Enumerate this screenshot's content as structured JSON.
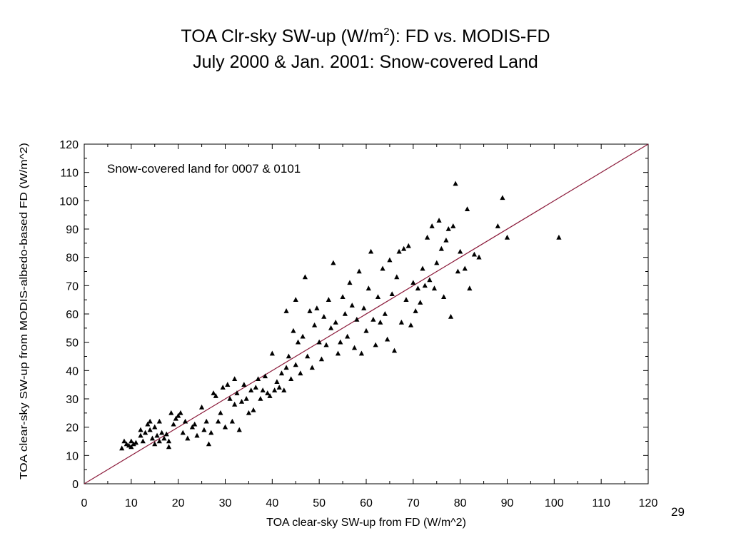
{
  "slide": {
    "title_part1": "TOA Clr-sky SW-up (W/m",
    "title_sup": "2",
    "title_part2": "): FD vs. MODIS-FD",
    "subtitle": "July 2000 & Jan. 2001: Snow-covered Land",
    "page_number": "29"
  },
  "chart_data": {
    "type": "scatter",
    "annotation": "Snow-covered land for 0007 & 0101",
    "xlabel": "TOA clear-sky SW-up from FD (W/m^2)",
    "ylabel": "TOA clear-sky SW-up from MODIS-albedo-based FD (W/m^2)",
    "xlim": [
      0,
      120
    ],
    "ylim": [
      0,
      120
    ],
    "xticks": [
      0,
      10,
      20,
      30,
      40,
      50,
      60,
      70,
      80,
      90,
      100,
      110,
      120
    ],
    "yticks": [
      0,
      10,
      20,
      30,
      40,
      50,
      60,
      70,
      80,
      90,
      100,
      110,
      120
    ],
    "grid": false,
    "marker": "triangle",
    "reference_line": {
      "type": "1:1",
      "from": [
        0,
        0
      ],
      "to": [
        120,
        120
      ],
      "color": "#8b1a3a"
    },
    "points": [
      [
        8,
        12.5
      ],
      [
        8.5,
        15
      ],
      [
        9,
        14
      ],
      [
        9.5,
        13.5
      ],
      [
        10,
        15
      ],
      [
        10,
        13
      ],
      [
        10.5,
        14
      ],
      [
        11,
        14.5
      ],
      [
        12,
        19
      ],
      [
        12,
        17
      ],
      [
        12.5,
        15
      ],
      [
        13,
        18
      ],
      [
        13.5,
        21
      ],
      [
        14,
        22
      ],
      [
        14,
        19
      ],
      [
        14.5,
        16
      ],
      [
        15,
        14
      ],
      [
        15,
        20
      ],
      [
        15.5,
        17
      ],
      [
        16,
        22
      ],
      [
        16,
        15
      ],
      [
        16.5,
        18
      ],
      [
        17,
        16
      ],
      [
        17.5,
        17.5
      ],
      [
        18,
        13
      ],
      [
        18,
        15
      ],
      [
        18.5,
        25
      ],
      [
        19,
        21
      ],
      [
        19.5,
        23
      ],
      [
        20,
        24
      ],
      [
        20.5,
        25
      ],
      [
        21,
        18
      ],
      [
        21.5,
        22
      ],
      [
        22,
        16
      ],
      [
        23,
        20
      ],
      [
        23.5,
        21
      ],
      [
        24,
        17
      ],
      [
        25,
        27
      ],
      [
        25.5,
        19
      ],
      [
        26,
        22
      ],
      [
        26.5,
        14
      ],
      [
        27,
        18
      ],
      [
        27.5,
        32
      ],
      [
        28,
        31
      ],
      [
        28.5,
        22
      ],
      [
        29,
        25
      ],
      [
        29.5,
        34
      ],
      [
        30,
        20
      ],
      [
        30.5,
        35
      ],
      [
        31,
        30
      ],
      [
        31.5,
        22
      ],
      [
        32,
        28
      ],
      [
        32,
        37
      ],
      [
        32.5,
        32
      ],
      [
        33,
        19
      ],
      [
        33.5,
        29
      ],
      [
        34,
        35
      ],
      [
        34.5,
        30
      ],
      [
        35,
        25
      ],
      [
        35.5,
        33
      ],
      [
        36,
        26
      ],
      [
        36.5,
        34
      ],
      [
        37,
        37
      ],
      [
        37.5,
        30
      ],
      [
        38,
        33
      ],
      [
        38.5,
        38
      ],
      [
        39,
        32
      ],
      [
        39.5,
        31
      ],
      [
        40,
        46
      ],
      [
        40.5,
        33
      ],
      [
        41,
        36
      ],
      [
        41.5,
        34
      ],
      [
        42,
        39
      ],
      [
        42.5,
        33
      ],
      [
        43,
        41
      ],
      [
        43,
        61
      ],
      [
        43.5,
        45
      ],
      [
        44,
        37
      ],
      [
        44.5,
        54
      ],
      [
        45,
        42
      ],
      [
        45,
        65
      ],
      [
        45.5,
        50
      ],
      [
        46,
        39
      ],
      [
        46.5,
        52
      ],
      [
        47,
        73
      ],
      [
        47.5,
        45
      ],
      [
        48,
        61
      ],
      [
        48.5,
        41
      ],
      [
        49,
        56
      ],
      [
        49.5,
        62
      ],
      [
        50,
        50
      ],
      [
        50.5,
        44
      ],
      [
        51,
        59
      ],
      [
        51.5,
        49
      ],
      [
        52,
        65
      ],
      [
        52.5,
        55
      ],
      [
        53,
        78
      ],
      [
        53.5,
        57
      ],
      [
        54,
        46
      ],
      [
        54.5,
        50
      ],
      [
        55,
        66
      ],
      [
        55.5,
        60
      ],
      [
        56,
        52
      ],
      [
        56.5,
        71
      ],
      [
        57,
        63
      ],
      [
        57.5,
        48
      ],
      [
        58,
        58
      ],
      [
        58.5,
        75
      ],
      [
        59,
        46
      ],
      [
        59.5,
        62
      ],
      [
        60,
        54
      ],
      [
        60.5,
        69
      ],
      [
        61,
        82
      ],
      [
        61.5,
        58
      ],
      [
        62,
        49
      ],
      [
        62.5,
        66
      ],
      [
        63,
        57
      ],
      [
        63.5,
        76
      ],
      [
        64,
        60
      ],
      [
        64.5,
        51
      ],
      [
        65,
        79
      ],
      [
        65.5,
        67
      ],
      [
        66,
        47
      ],
      [
        66.5,
        73
      ],
      [
        67,
        82
      ],
      [
        67.5,
        57
      ],
      [
        68,
        83
      ],
      [
        68.5,
        65
      ],
      [
        69,
        84
      ],
      [
        69.5,
        56
      ],
      [
        70,
        71
      ],
      [
        70.5,
        61
      ],
      [
        71,
        69
      ],
      [
        71.5,
        64
      ],
      [
        72,
        76
      ],
      [
        72.5,
        70
      ],
      [
        73,
        87
      ],
      [
        73.5,
        72
      ],
      [
        74,
        91
      ],
      [
        74.5,
        69
      ],
      [
        75,
        78
      ],
      [
        75.5,
        93
      ],
      [
        76,
        83
      ],
      [
        76.5,
        66
      ],
      [
        77,
        86
      ],
      [
        77.5,
        90
      ],
      [
        78,
        59
      ],
      [
        78.5,
        91
      ],
      [
        79,
        106
      ],
      [
        79.5,
        75
      ],
      [
        80,
        82
      ],
      [
        81,
        76
      ],
      [
        81.5,
        97
      ],
      [
        82,
        69
      ],
      [
        83,
        81
      ],
      [
        84,
        80
      ],
      [
        88,
        91
      ],
      [
        89,
        101
      ],
      [
        90,
        87
      ],
      [
        101,
        87
      ]
    ]
  }
}
